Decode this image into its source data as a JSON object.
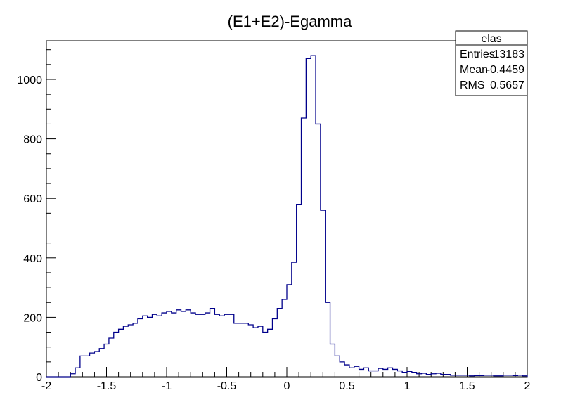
{
  "chart_data": {
    "type": "histogram",
    "title": "(E1+E2)-Egamma",
    "xlabel": "",
    "ylabel": "",
    "xlim": [
      -2,
      2
    ],
    "ylim": [
      0,
      1130
    ],
    "x_ticks": [
      -2,
      -1.5,
      -1,
      -0.5,
      0,
      0.5,
      1,
      1.5,
      2
    ],
    "x_tick_labels": [
      "-2",
      "-1.5",
      "-1",
      "-0.5",
      "0",
      "0.5",
      "1",
      "1.5",
      "2"
    ],
    "y_ticks": [
      0,
      200,
      400,
      600,
      800,
      1000
    ],
    "y_tick_labels": [
      "0",
      "200",
      "400",
      "600",
      "800",
      "1000"
    ],
    "bin_width": 0.04,
    "bin_start": -2,
    "values": [
      0,
      0,
      0,
      0,
      0,
      10,
      30,
      70,
      70,
      80,
      85,
      95,
      110,
      130,
      150,
      160,
      170,
      175,
      180,
      195,
      205,
      200,
      210,
      205,
      215,
      220,
      215,
      225,
      220,
      225,
      215,
      210,
      210,
      215,
      230,
      210,
      205,
      210,
      210,
      180,
      180,
      180,
      175,
      165,
      170,
      150,
      160,
      195,
      230,
      260,
      310,
      385,
      580,
      870,
      1070,
      1080,
      850,
      560,
      250,
      110,
      70,
      50,
      40,
      30,
      35,
      25,
      30,
      20,
      20,
      28,
      25,
      30,
      25,
      20,
      15,
      18,
      15,
      10,
      12,
      8,
      10,
      12,
      8,
      8,
      5,
      5,
      5,
      5,
      3,
      4,
      4,
      5,
      5,
      3,
      3,
      5,
      5,
      4,
      5,
      3
    ],
    "line_color": "#00008b",
    "stats_box": {
      "name": "elas",
      "rows": [
        {
          "label": "Entries",
          "value": "13183"
        },
        {
          "label": "Mean",
          "value": "-0.4459"
        },
        {
          "label": "RMS",
          "value": "0.5657"
        }
      ]
    }
  }
}
